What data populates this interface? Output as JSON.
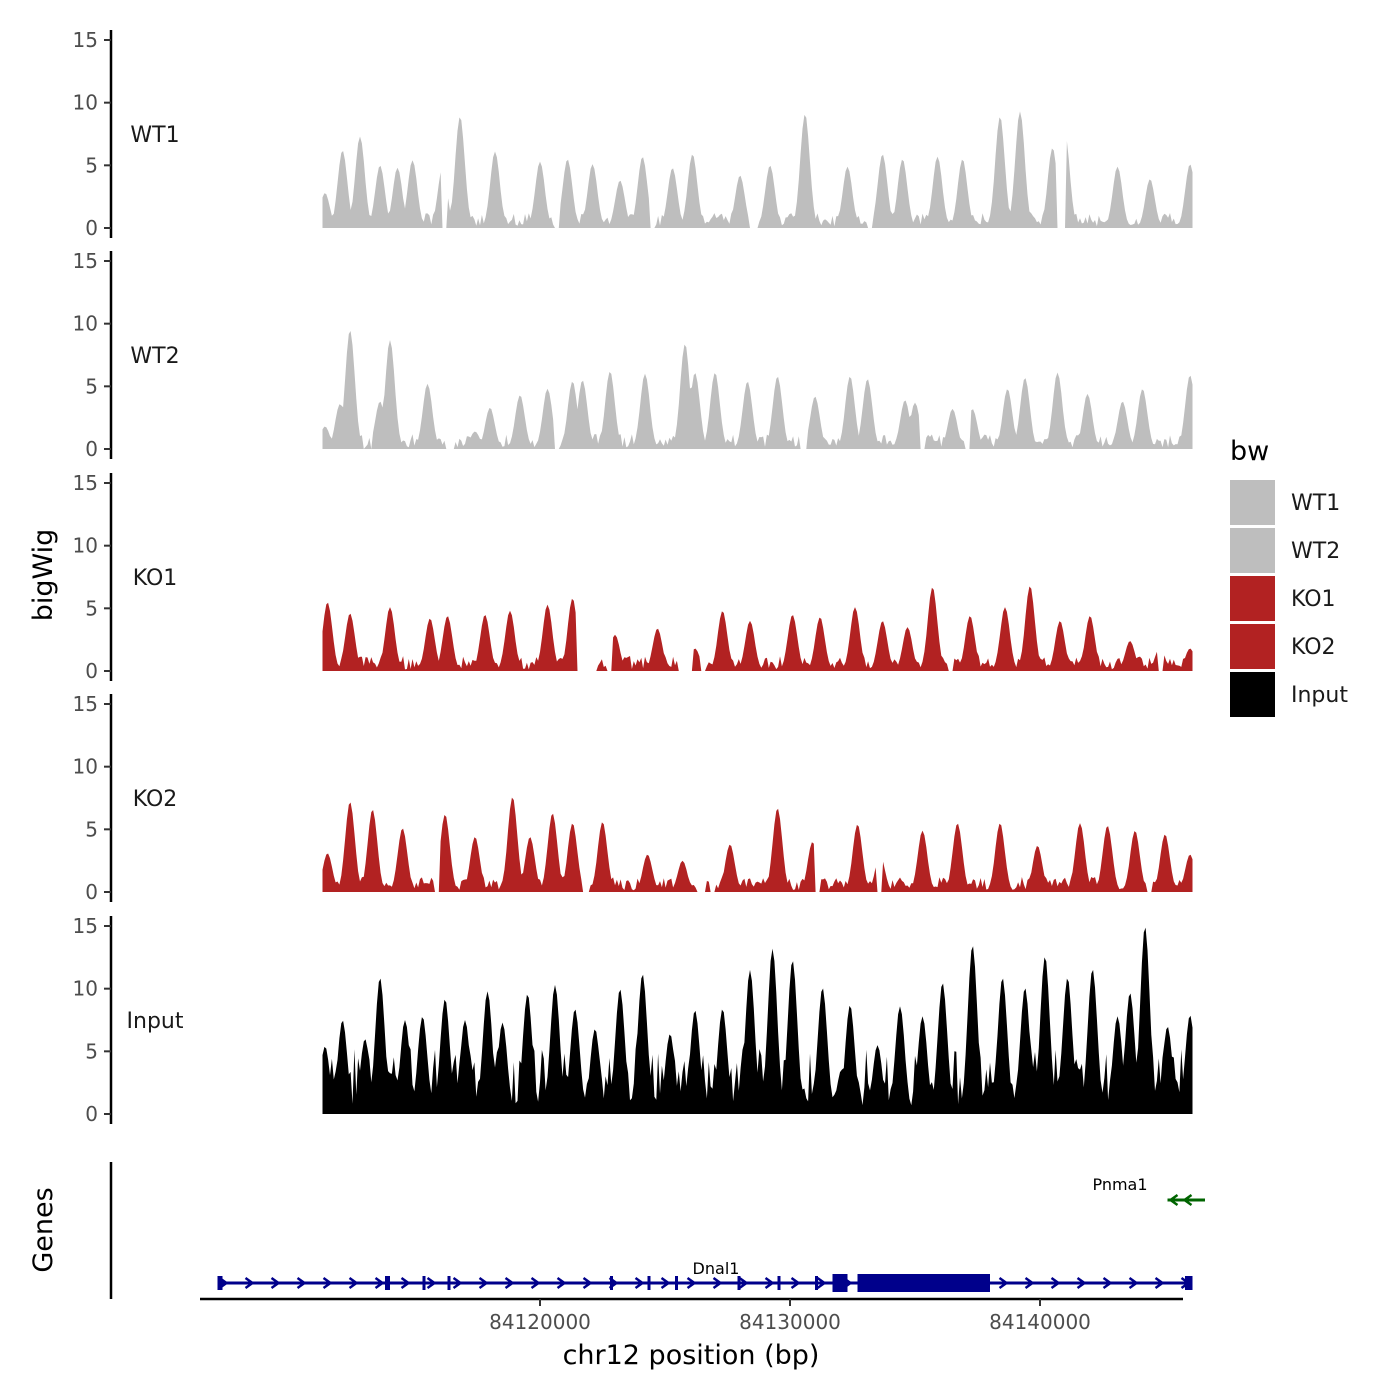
{
  "chart_data": {
    "type": "area",
    "chromosome": "chr12",
    "xlabel": "chr12 position (bp)",
    "ylabel": "bigWig",
    "genes_label": "Genes",
    "xlim": [
      84106000,
      84146000
    ],
    "data_range": [
      84111300,
      84146100
    ],
    "xticks": [
      84120000,
      84130000,
      84140000
    ],
    "xtick_labels": [
      "84120000",
      "84130000",
      "84140000"
    ],
    "ylim": [
      0,
      15
    ],
    "yticks": [
      0,
      5,
      10,
      15
    ],
    "ytick_labels": [
      "0",
      "5",
      "10",
      "15"
    ],
    "tracks": [
      {
        "name": "WT1",
        "color": "#bebebe",
        "peaks": [
          [
            84111400,
            2.8
          ],
          [
            84112100,
            6.2
          ],
          [
            84112800,
            7.3
          ],
          [
            84113600,
            5.0
          ],
          [
            84114300,
            4.8
          ],
          [
            84114900,
            5.4
          ],
          [
            84116100,
            4.8
          ],
          [
            84116800,
            8.9
          ],
          [
            84118200,
            6.1
          ],
          [
            84120000,
            5.3
          ],
          [
            84121100,
            5.5
          ],
          [
            84122100,
            5.1
          ],
          [
            84123200,
            3.8
          ],
          [
            84124100,
            5.7
          ],
          [
            84125300,
            4.8
          ],
          [
            84126100,
            5.9
          ],
          [
            84128000,
            4.2
          ],
          [
            84129200,
            5.0
          ],
          [
            84130600,
            9.1
          ],
          [
            84132300,
            4.9
          ],
          [
            84133700,
            5.9
          ],
          [
            84134500,
            5.5
          ],
          [
            84135900,
            5.7
          ],
          [
            84136900,
            5.5
          ],
          [
            84138400,
            8.9
          ],
          [
            84139200,
            9.3
          ],
          [
            84140500,
            6.4
          ],
          [
            84141000,
            7.5
          ],
          [
            84143100,
            4.9
          ],
          [
            84144400,
            3.9
          ],
          [
            84146000,
            5.1
          ]
        ],
        "gaps": [
          [
            84116100,
            84116300
          ],
          [
            84120600,
            84120800
          ],
          [
            84124400,
            84124600
          ],
          [
            84128400,
            84128700
          ],
          [
            84133100,
            84133300
          ],
          [
            84140700,
            84141000
          ]
        ]
      },
      {
        "name": "WT2",
        "color": "#bebebe",
        "peaks": [
          [
            84111400,
            1.8
          ],
          [
            84112000,
            3.6
          ],
          [
            84112400,
            9.5
          ],
          [
            84113600,
            3.8
          ],
          [
            84114000,
            8.7
          ],
          [
            84115500,
            5.2
          ],
          [
            84117400,
            1.4
          ],
          [
            84118000,
            3.3
          ],
          [
            84119200,
            4.3
          ],
          [
            84120300,
            4.8
          ],
          [
            84121300,
            5.4
          ],
          [
            84121700,
            5.5
          ],
          [
            84122800,
            6.2
          ],
          [
            84124200,
            6.0
          ],
          [
            84125800,
            8.4
          ],
          [
            84126200,
            6.1
          ],
          [
            84127000,
            6.1
          ],
          [
            84128300,
            5.4
          ],
          [
            84129500,
            5.8
          ],
          [
            84131000,
            4.2
          ],
          [
            84132400,
            5.8
          ],
          [
            84133100,
            5.6
          ],
          [
            84134600,
            3.9
          ],
          [
            84135000,
            3.7
          ],
          [
            84136500,
            3.2
          ],
          [
            84137300,
            3.2
          ],
          [
            84138700,
            4.8
          ],
          [
            84139400,
            5.7
          ],
          [
            84140700,
            6.1
          ],
          [
            84141900,
            4.4
          ],
          [
            84143300,
            3.8
          ],
          [
            84144100,
            4.8
          ],
          [
            84146000,
            5.9
          ]
        ],
        "gaps": [
          [
            84112900,
            84113000
          ],
          [
            84113200,
            84113300
          ],
          [
            84116200,
            84116600
          ],
          [
            84120600,
            84120800
          ],
          [
            84130400,
            84130700
          ],
          [
            84135200,
            84135400
          ],
          [
            84137000,
            84137200
          ]
        ]
      },
      {
        "name": "KO1",
        "color": "#b22222",
        "peaks": [
          [
            84111500,
            5.5
          ],
          [
            84112400,
            4.6
          ],
          [
            84114000,
            5.1
          ],
          [
            84115600,
            4.2
          ],
          [
            84116300,
            4.4
          ],
          [
            84117800,
            4.5
          ],
          [
            84118800,
            4.8
          ],
          [
            84120300,
            5.3
          ],
          [
            84121300,
            5.8
          ],
          [
            84123000,
            2.9
          ],
          [
            84124700,
            3.4
          ],
          [
            84126200,
            1.8
          ],
          [
            84127300,
            4.8
          ],
          [
            84128400,
            4.0
          ],
          [
            84130100,
            4.5
          ],
          [
            84131200,
            4.3
          ],
          [
            84132600,
            5.1
          ],
          [
            84133700,
            4.0
          ],
          [
            84134700,
            3.5
          ],
          [
            84135700,
            6.7
          ],
          [
            84137200,
            4.4
          ],
          [
            84138600,
            5.1
          ],
          [
            84139600,
            6.8
          ],
          [
            84140800,
            4.0
          ],
          [
            84142000,
            4.4
          ],
          [
            84143600,
            2.4
          ],
          [
            84144800,
            1.9
          ],
          [
            84146000,
            1.8
          ]
        ],
        "gaps": [
          [
            84121500,
            84122300
          ],
          [
            84122700,
            84122900
          ],
          [
            84125500,
            84126100
          ],
          [
            84126400,
            84126600
          ],
          [
            84136300,
            84136500
          ],
          [
            84144700,
            84144900
          ]
        ]
      },
      {
        "name": "KO2",
        "color": "#b22222",
        "peaks": [
          [
            84111500,
            3.1
          ],
          [
            84112400,
            7.2
          ],
          [
            84113300,
            6.6
          ],
          [
            84114500,
            5.1
          ],
          [
            84116200,
            6.2
          ],
          [
            84117400,
            4.4
          ],
          [
            84118900,
            7.6
          ],
          [
            84119600,
            4.4
          ],
          [
            84120500,
            6.3
          ],
          [
            84121300,
            5.5
          ],
          [
            84122500,
            5.6
          ],
          [
            84124300,
            3.0
          ],
          [
            84125700,
            2.5
          ],
          [
            84127600,
            3.8
          ],
          [
            84129500,
            6.7
          ],
          [
            84130900,
            4.0
          ],
          [
            84132700,
            5.4
          ],
          [
            84133600,
            3.0
          ],
          [
            84135300,
            4.9
          ],
          [
            84136700,
            5.5
          ],
          [
            84138400,
            5.5
          ],
          [
            84139900,
            3.7
          ],
          [
            84141600,
            5.5
          ],
          [
            84142700,
            5.3
          ],
          [
            84143800,
            4.9
          ],
          [
            84145000,
            4.6
          ],
          [
            84146000,
            3.0
          ]
        ],
        "gaps": [
          [
            84115800,
            84116000
          ],
          [
            84121700,
            84122000
          ],
          [
            84126300,
            84126600
          ],
          [
            84126800,
            84127000
          ],
          [
            84131000,
            84131200
          ],
          [
            84133500,
            84133700
          ],
          [
            84144300,
            84144500
          ]
        ]
      },
      {
        "name": "Input",
        "color": "#000000",
        "peaks": [
          [
            84111400,
            5.4
          ],
          [
            84112100,
            7.5
          ],
          [
            84113000,
            6.0
          ],
          [
            84113600,
            10.9
          ],
          [
            84114600,
            7.5
          ],
          [
            84115300,
            7.8
          ],
          [
            84116200,
            9.2
          ],
          [
            84117000,
            7.5
          ],
          [
            84117900,
            9.8
          ],
          [
            84118500,
            7.3
          ],
          [
            84119500,
            9.6
          ],
          [
            84120600,
            10.3
          ],
          [
            84121400,
            8.4
          ],
          [
            84122200,
            6.8
          ],
          [
            84123200,
            10.0
          ],
          [
            84124100,
            11.2
          ],
          [
            84125200,
            6.4
          ],
          [
            84126200,
            8.3
          ],
          [
            84127300,
            8.4
          ],
          [
            84128400,
            11.5
          ],
          [
            84129300,
            13.2
          ],
          [
            84130100,
            12.3
          ],
          [
            84131300,
            10.1
          ],
          [
            84132400,
            8.7
          ],
          [
            84133500,
            5.5
          ],
          [
            84134400,
            8.6
          ],
          [
            84135300,
            7.8
          ],
          [
            84136100,
            10.5
          ],
          [
            84137300,
            13.5
          ],
          [
            84138500,
            10.9
          ],
          [
            84139400,
            10.1
          ],
          [
            84140200,
            12.6
          ],
          [
            84141100,
            10.9
          ],
          [
            84142100,
            11.6
          ],
          [
            84143100,
            7.8
          ],
          [
            84143600,
            9.7
          ],
          [
            84144200,
            15.0
          ],
          [
            84145100,
            7.0
          ],
          [
            84146000,
            7.9
          ]
        ],
        "gaps": []
      }
    ],
    "genes": [
      {
        "name": "Dnal1",
        "color": "#00008b",
        "strand": "+",
        "start": 84107100,
        "end": 84146100,
        "exons": [
          [
            84107100,
            84107300
          ],
          [
            84113800,
            84114000
          ],
          [
            84115300,
            84115400
          ],
          [
            84116300,
            84116400
          ],
          [
            84122800,
            84122900
          ],
          [
            84124300,
            84124400
          ],
          [
            84125400,
            84125500
          ],
          [
            84127900,
            84128000
          ],
          [
            84129500,
            84129600
          ],
          [
            84131000,
            84131100
          ],
          [
            84131700,
            84132300
          ],
          [
            84132700,
            84138000
          ],
          [
            84145800,
            84146100
          ]
        ]
      },
      {
        "name": "Pnma1",
        "color": "#006400",
        "strand": "-",
        "start": 84145100,
        "end": 84146600,
        "exons": []
      }
    ]
  },
  "legend": {
    "title": "bw",
    "items": [
      {
        "label": "WT1",
        "color": "#bebebe"
      },
      {
        "label": "WT2",
        "color": "#bebebe"
      },
      {
        "label": "KO1",
        "color": "#b22222"
      },
      {
        "label": "KO2",
        "color": "#b22222"
      },
      {
        "label": "Input",
        "color": "#000000"
      }
    ]
  }
}
